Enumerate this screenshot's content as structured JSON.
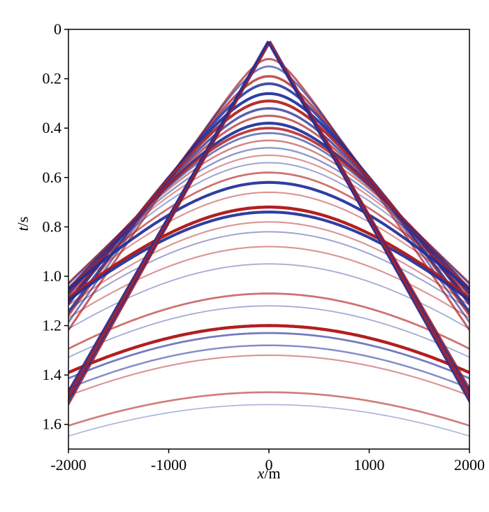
{
  "chart_data": {
    "type": "seismic-gather",
    "title": "",
    "xlabel": {
      "symbol": "x",
      "unit": "/m"
    },
    "ylabel": {
      "symbol": "t",
      "unit": "/s"
    },
    "xlim": [
      -2000,
      2000
    ],
    "ylim": [
      0,
      1.7
    ],
    "y_inverted": true,
    "xticks": [
      {
        "value": -2000,
        "label": "-2000"
      },
      {
        "value": -1000,
        "label": "-1000"
      },
      {
        "value": 0,
        "label": "0"
      },
      {
        "value": 1000,
        "label": "1000"
      },
      {
        "value": 2000,
        "label": "2000"
      }
    ],
    "yticks": [
      {
        "value": 0,
        "label": "0"
      },
      {
        "value": 0.2,
        "label": "0.2"
      },
      {
        "value": 0.4,
        "label": "0.4"
      },
      {
        "value": 0.6,
        "label": "0.6"
      },
      {
        "value": 0.8,
        "label": "0.8"
      },
      {
        "value": 1.0,
        "label": "1.0"
      },
      {
        "value": 1.2,
        "label": "1.2"
      },
      {
        "value": 1.4,
        "label": "1.4"
      },
      {
        "value": 1.6,
        "label": "1.6"
      }
    ],
    "colors": {
      "positive": "#b21f1f",
      "negative": "#1f2f9a"
    },
    "direct_wave": {
      "slope_s_per_m": 0.000718,
      "t0": 0.05
    },
    "events": [
      {
        "t0": 0.12,
        "v": 1650,
        "amp": 0.6,
        "polarity": 1
      },
      {
        "t0": 0.15,
        "v": 1700,
        "amp": 0.5,
        "polarity": -1
      },
      {
        "t0": 0.19,
        "v": 1750,
        "amp": 0.7,
        "polarity": 1
      },
      {
        "t0": 0.22,
        "v": 1780,
        "amp": 0.8,
        "polarity": -1
      },
      {
        "t0": 0.26,
        "v": 1850,
        "amp": 0.9,
        "polarity": -1
      },
      {
        "t0": 0.29,
        "v": 1880,
        "amp": 0.9,
        "polarity": 1
      },
      {
        "t0": 0.32,
        "v": 1900,
        "amp": 0.7,
        "polarity": -1
      },
      {
        "t0": 0.35,
        "v": 1950,
        "amp": 0.6,
        "polarity": 1
      },
      {
        "t0": 0.38,
        "v": 2000,
        "amp": 0.9,
        "polarity": -1
      },
      {
        "t0": 0.4,
        "v": 2050,
        "amp": 0.8,
        "polarity": 1
      },
      {
        "t0": 0.42,
        "v": 2080,
        "amp": 0.5,
        "polarity": -1
      },
      {
        "t0": 0.45,
        "v": 2150,
        "amp": 0.4,
        "polarity": 1
      },
      {
        "t0": 0.48,
        "v": 2200,
        "amp": 0.35,
        "polarity": -1
      },
      {
        "t0": 0.51,
        "v": 2250,
        "amp": 0.3,
        "polarity": 1
      },
      {
        "t0": 0.54,
        "v": 2280,
        "amp": 0.25,
        "polarity": -1
      },
      {
        "t0": 0.58,
        "v": 2300,
        "amp": 0.5,
        "polarity": 1
      },
      {
        "t0": 0.62,
        "v": 2350,
        "amp": 0.9,
        "polarity": -1
      },
      {
        "t0": 0.66,
        "v": 2400,
        "amp": 0.3,
        "polarity": 1
      },
      {
        "t0": 0.72,
        "v": 2450,
        "amp": 1.0,
        "polarity": 1
      },
      {
        "t0": 0.74,
        "v": 2470,
        "amp": 0.9,
        "polarity": -1
      },
      {
        "t0": 0.78,
        "v": 2500,
        "amp": 0.3,
        "polarity": 1
      },
      {
        "t0": 0.82,
        "v": 2550,
        "amp": 0.25,
        "polarity": -1
      },
      {
        "t0": 0.88,
        "v": 2600,
        "amp": 0.3,
        "polarity": 1
      },
      {
        "t0": 0.95,
        "v": 2650,
        "amp": 0.2,
        "polarity": -1
      },
      {
        "t0": 1.07,
        "v": 2750,
        "amp": 0.5,
        "polarity": 1
      },
      {
        "t0": 1.12,
        "v": 2800,
        "amp": 0.2,
        "polarity": -1
      },
      {
        "t0": 1.2,
        "v": 2850,
        "amp": 1.0,
        "polarity": 1
      },
      {
        "t0": 1.23,
        "v": 2870,
        "amp": 0.5,
        "polarity": -1
      },
      {
        "t0": 1.28,
        "v": 2900,
        "amp": 0.4,
        "polarity": -1
      },
      {
        "t0": 1.32,
        "v": 2950,
        "amp": 0.3,
        "polarity": 1
      },
      {
        "t0": 1.47,
        "v": 3100,
        "amp": 0.45,
        "polarity": 1
      },
      {
        "t0": 1.52,
        "v": 3150,
        "amp": 0.15,
        "polarity": -1
      }
    ]
  }
}
